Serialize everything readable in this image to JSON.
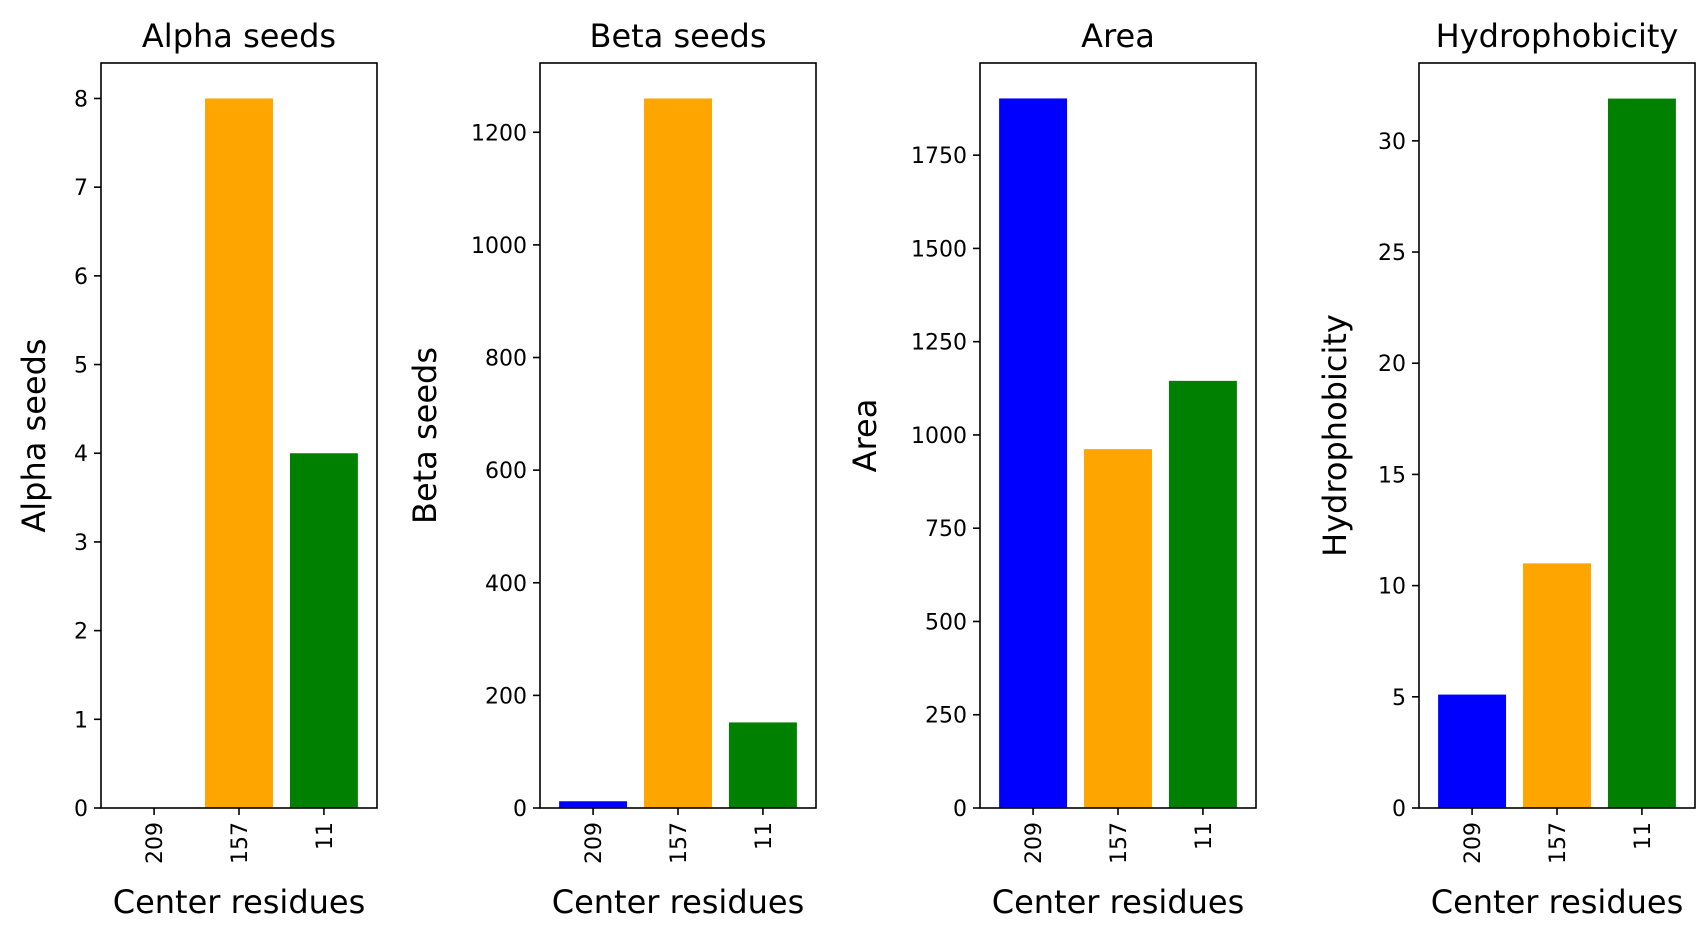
{
  "chart_data": [
    {
      "type": "bar",
      "title": "Alpha seeds",
      "xlabel": "Center residues",
      "ylabel": "Alpha seeds",
      "categories": [
        "209",
        "157",
        "11"
      ],
      "values": [
        0,
        8,
        4
      ],
      "colors": [
        "#0000ff",
        "#ffa500",
        "#008000"
      ],
      "ylim": [
        0,
        8.4
      ],
      "yticks": [
        0,
        1,
        2,
        3,
        4,
        5,
        6,
        7,
        8
      ]
    },
    {
      "type": "bar",
      "title": "Beta seeds",
      "xlabel": "Center residues",
      "ylabel": "Beta seeds",
      "categories": [
        "209",
        "157",
        "11"
      ],
      "values": [
        12,
        1260,
        152
      ],
      "colors": [
        "#0000ff",
        "#ffa500",
        "#008000"
      ],
      "ylim": [
        0,
        1323
      ],
      "yticks": [
        0,
        200,
        400,
        600,
        800,
        1000,
        1200
      ]
    },
    {
      "type": "bar",
      "title": "Area",
      "xlabel": "Center residues",
      "ylabel": "Area",
      "categories": [
        "209",
        "157",
        "11"
      ],
      "values": [
        1902,
        962,
        1145
      ],
      "colors": [
        "#0000ff",
        "#ffa500",
        "#008000"
      ],
      "ylim": [
        0,
        1997
      ],
      "yticks": [
        0,
        250,
        500,
        750,
        1000,
        1250,
        1500,
        1750
      ]
    },
    {
      "type": "bar",
      "title": "Hydrophobicity",
      "xlabel": "Center residues",
      "ylabel": "Hydrophobicity",
      "categories": [
        "209",
        "157",
        "11"
      ],
      "values": [
        5.1,
        11.0,
        31.9
      ],
      "colors": [
        "#0000ff",
        "#ffa500",
        "#008000"
      ],
      "ylim": [
        0,
        33.5
      ],
      "yticks": [
        0,
        5,
        10,
        15,
        20,
        25,
        30
      ]
    }
  ]
}
